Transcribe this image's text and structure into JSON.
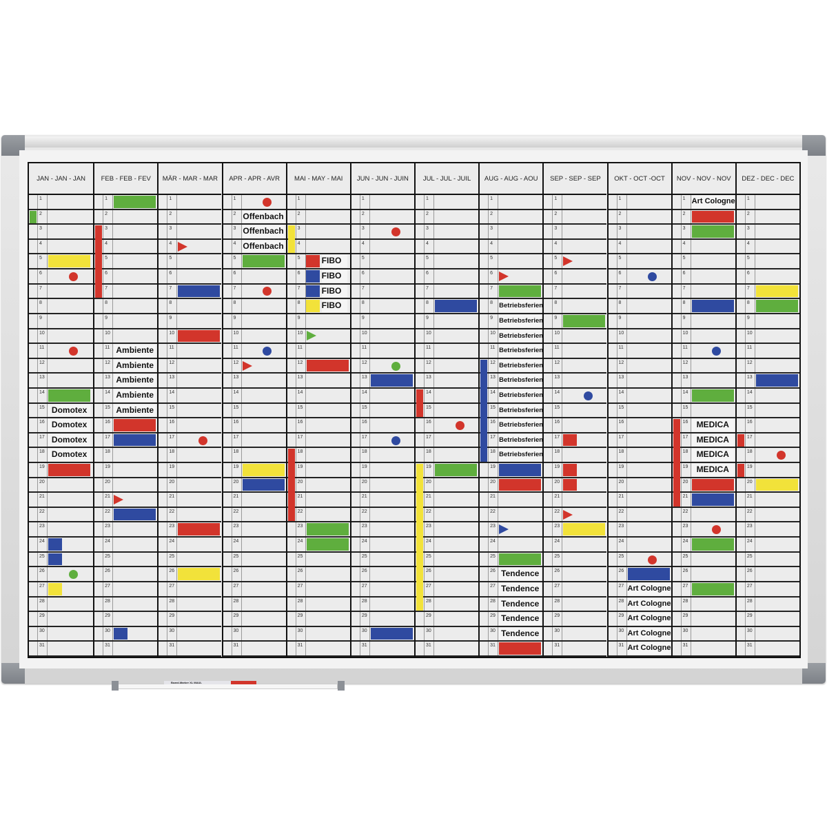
{
  "colors": {
    "red": "#d2352b",
    "green": "#5fae3e",
    "blue": "#2f4aa0",
    "yellow": "#f2e23a"
  },
  "months": [
    "JAN - JAN - JAN",
    "FEB - FEB - FEV",
    "MÄR - MAR - MAR",
    "APR - APR - AVR",
    "MAI - MAY - MAI",
    "JUN - JUN - JUIN",
    "JUL - JUL - JUIL",
    "AUG - AUG - AOU",
    "SEP - SEP - SEP",
    "OKT - OCT -OCT",
    "NOV - NOV - NOV",
    "DEZ - DEC - DEC"
  ],
  "days": 31,
  "marker_label": "Board-Marker XL   MAUL",
  "magnets": [
    {
      "m": 0,
      "d": 2,
      "to": 2,
      "kind": "strip",
      "color": "green"
    },
    {
      "m": 0,
      "d": 5,
      "kind": "bar",
      "color": "yellow"
    },
    {
      "m": 0,
      "d": 6,
      "kind": "dot",
      "color": "red"
    },
    {
      "m": 0,
      "d": 11,
      "kind": "dot",
      "color": "red"
    },
    {
      "m": 0,
      "d": 14,
      "kind": "bar",
      "color": "green"
    },
    {
      "m": 0,
      "d": 15,
      "kind": "label",
      "text": "Domotex"
    },
    {
      "m": 0,
      "d": 16,
      "kind": "label",
      "text": "Domotex"
    },
    {
      "m": 0,
      "d": 17,
      "kind": "label",
      "text": "Domotex"
    },
    {
      "m": 0,
      "d": 18,
      "kind": "label",
      "text": "Domotex"
    },
    {
      "m": 0,
      "d": 19,
      "kind": "bar",
      "color": "red"
    },
    {
      "m": 0,
      "d": 24,
      "kind": "small",
      "color": "blue"
    },
    {
      "m": 0,
      "d": 25,
      "kind": "small",
      "color": "blue"
    },
    {
      "m": 0,
      "d": 26,
      "kind": "dot",
      "color": "green"
    },
    {
      "m": 0,
      "d": 27,
      "kind": "small",
      "color": "yellow"
    },
    {
      "m": 1,
      "d": 1,
      "kind": "bar",
      "color": "green"
    },
    {
      "m": 1,
      "d": 3,
      "to": 7,
      "kind": "strip",
      "color": "red"
    },
    {
      "m": 1,
      "d": 11,
      "kind": "label",
      "text": "Ambiente"
    },
    {
      "m": 1,
      "d": 12,
      "kind": "label",
      "text": "Ambiente"
    },
    {
      "m": 1,
      "d": 13,
      "kind": "label",
      "text": "Ambiente"
    },
    {
      "m": 1,
      "d": 14,
      "kind": "label",
      "text": "Ambiente"
    },
    {
      "m": 1,
      "d": 15,
      "kind": "label",
      "text": "Ambiente"
    },
    {
      "m": 1,
      "d": 16,
      "kind": "bar",
      "color": "red"
    },
    {
      "m": 1,
      "d": 17,
      "kind": "bar",
      "color": "blue"
    },
    {
      "m": 1,
      "d": 21,
      "kind": "tri",
      "color": "red"
    },
    {
      "m": 1,
      "d": 22,
      "kind": "bar",
      "color": "blue"
    },
    {
      "m": 1,
      "d": 30,
      "kind": "small",
      "color": "blue"
    },
    {
      "m": 2,
      "d": 4,
      "kind": "tri",
      "color": "red"
    },
    {
      "m": 2,
      "d": 7,
      "kind": "bar",
      "color": "blue"
    },
    {
      "m": 2,
      "d": 10,
      "kind": "bar",
      "color": "red"
    },
    {
      "m": 2,
      "d": 17,
      "kind": "dot",
      "color": "red"
    },
    {
      "m": 2,
      "d": 23,
      "kind": "bar",
      "color": "red"
    },
    {
      "m": 2,
      "d": 26,
      "kind": "bar",
      "color": "yellow"
    },
    {
      "m": 3,
      "d": 1,
      "kind": "dot",
      "color": "red"
    },
    {
      "m": 3,
      "d": 2,
      "kind": "label",
      "text": "Offenbach"
    },
    {
      "m": 3,
      "d": 3,
      "kind": "label",
      "text": "Offenbach"
    },
    {
      "m": 3,
      "d": 4,
      "kind": "label",
      "text": "Offenbach"
    },
    {
      "m": 3,
      "d": 5,
      "kind": "bar",
      "color": "green"
    },
    {
      "m": 3,
      "d": 7,
      "kind": "dot",
      "color": "red"
    },
    {
      "m": 3,
      "d": 11,
      "kind": "dot",
      "color": "blue"
    },
    {
      "m": 3,
      "d": 12,
      "kind": "tri",
      "color": "red"
    },
    {
      "m": 3,
      "d": 19,
      "kind": "bar",
      "color": "yellow"
    },
    {
      "m": 3,
      "d": 20,
      "kind": "bar",
      "color": "blue"
    },
    {
      "m": 4,
      "d": 3,
      "to": 4,
      "kind": "strip",
      "color": "yellow"
    },
    {
      "m": 4,
      "d": 5,
      "kind": "small",
      "color": "red"
    },
    {
      "m": 4,
      "d": 6,
      "kind": "small",
      "color": "blue"
    },
    {
      "m": 4,
      "d": 7,
      "kind": "small",
      "color": "blue"
    },
    {
      "m": 4,
      "d": 8,
      "kind": "small",
      "color": "yellow"
    },
    {
      "m": 4,
      "d": 5,
      "kind": "label",
      "text": "FIBO",
      "shift": true
    },
    {
      "m": 4,
      "d": 6,
      "kind": "label",
      "text": "FIBO",
      "shift": true
    },
    {
      "m": 4,
      "d": 7,
      "kind": "label",
      "text": "FIBO",
      "shift": true
    },
    {
      "m": 4,
      "d": 8,
      "kind": "label",
      "text": "FIBO",
      "shift": true
    },
    {
      "m": 4,
      "d": 10,
      "kind": "tri",
      "color": "green"
    },
    {
      "m": 4,
      "d": 12,
      "kind": "bar",
      "color": "red"
    },
    {
      "m": 4,
      "d": 18,
      "to": 22,
      "kind": "strip",
      "color": "red"
    },
    {
      "m": 4,
      "d": 23,
      "kind": "bar",
      "color": "green"
    },
    {
      "m": 4,
      "d": 24,
      "kind": "bar",
      "color": "green"
    },
    {
      "m": 5,
      "d": 3,
      "kind": "dot",
      "color": "red"
    },
    {
      "m": 5,
      "d": 12,
      "kind": "dot",
      "color": "green"
    },
    {
      "m": 5,
      "d": 13,
      "kind": "bar",
      "color": "blue"
    },
    {
      "m": 5,
      "d": 17,
      "kind": "dot",
      "color": "blue"
    },
    {
      "m": 5,
      "d": 30,
      "kind": "bar",
      "color": "blue"
    },
    {
      "m": 6,
      "d": 8,
      "kind": "bar",
      "color": "blue"
    },
    {
      "m": 6,
      "d": 14,
      "to": 15,
      "kind": "strip",
      "color": "red"
    },
    {
      "m": 6,
      "d": 16,
      "kind": "dot",
      "color": "red"
    },
    {
      "m": 6,
      "d": 19,
      "to": 28,
      "kind": "strip",
      "color": "yellow"
    },
    {
      "m": 6,
      "d": 19,
      "kind": "bar",
      "color": "green"
    },
    {
      "m": 7,
      "d": 6,
      "kind": "tri",
      "color": "red"
    },
    {
      "m": 7,
      "d": 7,
      "kind": "bar",
      "color": "green"
    },
    {
      "m": 7,
      "d": 8,
      "kind": "label",
      "text": "Betriebsferien",
      "sm": true
    },
    {
      "m": 7,
      "d": 9,
      "kind": "label",
      "text": "Betriebsferien",
      "sm": true
    },
    {
      "m": 7,
      "d": 10,
      "kind": "label",
      "text": "Betriebsferien",
      "sm": true
    },
    {
      "m": 7,
      "d": 11,
      "kind": "label",
      "text": "Betriebsferien",
      "sm": true
    },
    {
      "m": 7,
      "d": 12,
      "kind": "label",
      "text": "Betriebsferien",
      "sm": true
    },
    {
      "m": 7,
      "d": 13,
      "kind": "label",
      "text": "Betriebsferien",
      "sm": true
    },
    {
      "m": 7,
      "d": 14,
      "kind": "label",
      "text": "Betriebsferien",
      "sm": true
    },
    {
      "m": 7,
      "d": 15,
      "kind": "label",
      "text": "Betriebsferien",
      "sm": true
    },
    {
      "m": 7,
      "d": 16,
      "kind": "label",
      "text": "Betriebsferien",
      "sm": true
    },
    {
      "m": 7,
      "d": 17,
      "kind": "label",
      "text": "Betriebsferien",
      "sm": true
    },
    {
      "m": 7,
      "d": 18,
      "kind": "label",
      "text": "Betriebsferien",
      "sm": true
    },
    {
      "m": 7,
      "d": 12,
      "to": 18,
      "kind": "strip",
      "color": "blue"
    },
    {
      "m": 7,
      "d": 19,
      "kind": "bar",
      "color": "blue"
    },
    {
      "m": 7,
      "d": 20,
      "kind": "bar",
      "color": "red"
    },
    {
      "m": 7,
      "d": 23,
      "kind": "tri",
      "color": "blue"
    },
    {
      "m": 7,
      "d": 25,
      "kind": "bar",
      "color": "green"
    },
    {
      "m": 7,
      "d": 26,
      "kind": "label",
      "text": "Tendence"
    },
    {
      "m": 7,
      "d": 27,
      "kind": "label",
      "text": "Tendence"
    },
    {
      "m": 7,
      "d": 28,
      "kind": "label",
      "text": "Tendence"
    },
    {
      "m": 7,
      "d": 29,
      "kind": "label",
      "text": "Tendence"
    },
    {
      "m": 7,
      "d": 30,
      "kind": "label",
      "text": "Tendence"
    },
    {
      "m": 7,
      "d": 31,
      "kind": "bar",
      "color": "red"
    },
    {
      "m": 8,
      "d": 5,
      "kind": "tri",
      "color": "red"
    },
    {
      "m": 8,
      "d": 9,
      "kind": "bar",
      "color": "green"
    },
    {
      "m": 8,
      "d": 14,
      "kind": "dot",
      "color": "blue"
    },
    {
      "m": 8,
      "d": 17,
      "kind": "small",
      "color": "red"
    },
    {
      "m": 8,
      "d": 19,
      "kind": "small",
      "color": "red"
    },
    {
      "m": 8,
      "d": 20,
      "kind": "small",
      "color": "red"
    },
    {
      "m": 8,
      "d": 22,
      "kind": "tri",
      "color": "red"
    },
    {
      "m": 8,
      "d": 23,
      "kind": "bar",
      "color": "yellow"
    },
    {
      "m": 9,
      "d": 6,
      "kind": "dot",
      "color": "blue"
    },
    {
      "m": 9,
      "d": 25,
      "kind": "dot",
      "color": "red"
    },
    {
      "m": 9,
      "d": 26,
      "kind": "bar",
      "color": "blue"
    },
    {
      "m": 9,
      "d": 27,
      "kind": "label",
      "text": "Art Cologne",
      "sm2": true
    },
    {
      "m": 9,
      "d": 28,
      "kind": "label",
      "text": "Art Cologne",
      "sm2": true
    },
    {
      "m": 9,
      "d": 29,
      "kind": "label",
      "text": "Art Cologne",
      "sm2": true
    },
    {
      "m": 9,
      "d": 30,
      "kind": "label",
      "text": "Art Cologne",
      "sm2": true
    },
    {
      "m": 9,
      "d": 31,
      "kind": "label",
      "text": "Art Cologne",
      "sm2": true
    },
    {
      "m": 10,
      "d": 1,
      "kind": "label",
      "text": "Art Cologne",
      "sm2": true
    },
    {
      "m": 10,
      "d": 2,
      "kind": "bar",
      "color": "red"
    },
    {
      "m": 10,
      "d": 3,
      "kind": "bar",
      "color": "green"
    },
    {
      "m": 10,
      "d": 8,
      "kind": "bar",
      "color": "blue"
    },
    {
      "m": 10,
      "d": 11,
      "kind": "dot",
      "color": "blue"
    },
    {
      "m": 10,
      "d": 14,
      "kind": "bar",
      "color": "green"
    },
    {
      "m": 10,
      "d": 16,
      "kind": "label",
      "text": "MEDICA"
    },
    {
      "m": 10,
      "d": 17,
      "kind": "label",
      "text": "MEDICA"
    },
    {
      "m": 10,
      "d": 18,
      "kind": "label",
      "text": "MEDICA"
    },
    {
      "m": 10,
      "d": 19,
      "kind": "label",
      "text": "MEDICA"
    },
    {
      "m": 10,
      "d": 16,
      "to": 21,
      "kind": "strip",
      "color": "red"
    },
    {
      "m": 10,
      "d": 20,
      "kind": "bar",
      "color": "red"
    },
    {
      "m": 10,
      "d": 21,
      "kind": "bar",
      "color": "blue"
    },
    {
      "m": 10,
      "d": 23,
      "kind": "dot",
      "color": "red"
    },
    {
      "m": 10,
      "d": 24,
      "kind": "bar",
      "color": "green"
    },
    {
      "m": 10,
      "d": 27,
      "kind": "bar",
      "color": "green"
    },
    {
      "m": 11,
      "d": 7,
      "kind": "bar",
      "color": "yellow"
    },
    {
      "m": 11,
      "d": 8,
      "kind": "bar",
      "color": "green"
    },
    {
      "m": 11,
      "d": 13,
      "kind": "bar",
      "color": "blue"
    },
    {
      "m": 11,
      "d": 17,
      "to": 17,
      "kind": "strip",
      "color": "red"
    },
    {
      "m": 11,
      "d": 18,
      "kind": "dot",
      "color": "red"
    },
    {
      "m": 11,
      "d": 19,
      "to": 19,
      "kind": "strip",
      "color": "red"
    },
    {
      "m": 11,
      "d": 20,
      "kind": "bar",
      "color": "yellow"
    }
  ]
}
